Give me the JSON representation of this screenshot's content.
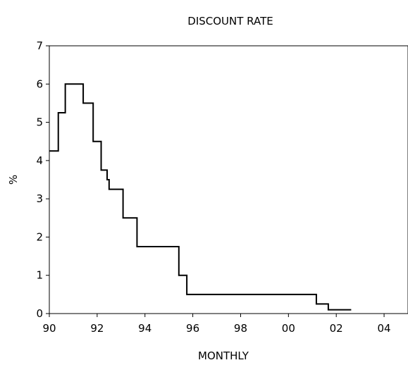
{
  "chart_data": {
    "type": "line",
    "title": "DISCOUNT RATE",
    "xlabel": "MONTHLY",
    "ylabel": "%",
    "xlim": [
      1990,
      2005
    ],
    "ylim": [
      0,
      7
    ],
    "grid": false,
    "x_tick_labels": [
      "90",
      "92",
      "94",
      "96",
      "98",
      "00",
      "02",
      "04"
    ],
    "x_tick_values": [
      1990,
      1992,
      1994,
      1996,
      1998,
      2000,
      2002,
      2004
    ],
    "y_tick_labels": [
      "0",
      "1",
      "2",
      "3",
      "4",
      "5",
      "6",
      "7"
    ],
    "y_tick_values": [
      0,
      1,
      2,
      3,
      4,
      5,
      6,
      7
    ],
    "series": [
      {
        "name": "",
        "color": "#000000",
        "step": true,
        "x": [
          1990.0,
          1990.125,
          1990.375,
          1990.667,
          1991.333,
          1991.417,
          1991.625,
          1991.833,
          1992.0,
          1992.167,
          1992.333,
          1992.417,
          1992.5,
          1992.75,
          1993.083,
          1993.583,
          1993.667,
          1995.333,
          1995.417,
          1995.667,
          1995.75,
          2001.0,
          2001.167,
          2001.667,
          2002.625
        ],
        "y": [
          4.25,
          4.25,
          5.25,
          6.0,
          6.0,
          5.5,
          5.5,
          4.5,
          4.5,
          3.75,
          3.75,
          3.5,
          3.25,
          3.25,
          2.5,
          2.5,
          1.75,
          1.75,
          1.0,
          1.0,
          0.5,
          0.5,
          0.25,
          0.1,
          0.1
        ]
      }
    ]
  }
}
